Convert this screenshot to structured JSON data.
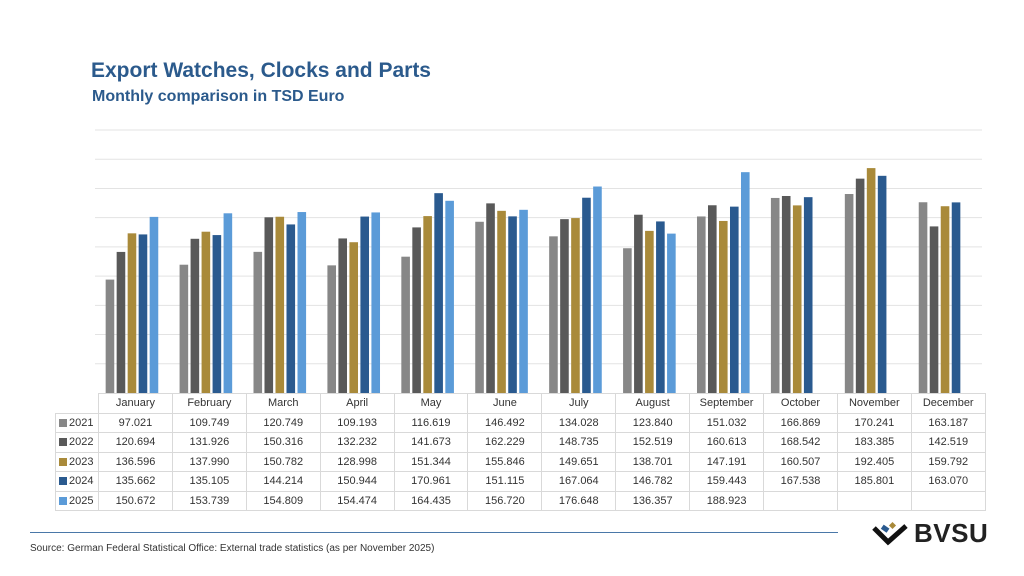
{
  "header": {
    "title": "Export Watches, Clocks and Parts",
    "subtitle": "Monthly comparison in TSD Euro"
  },
  "chart_data": {
    "type": "bar",
    "title": "Export Watches, Clocks and Parts",
    "subtitle": "Monthly comparison in TSD Euro",
    "categories": [
      "January",
      "February",
      "March",
      "April",
      "May",
      "June",
      "July",
      "August",
      "September",
      "October",
      "November",
      "December"
    ],
    "ylim": [
      0,
      225
    ],
    "grid": true,
    "legend": "data-table",
    "series": [
      {
        "name": "2021",
        "color": "#878787",
        "values": [
          97.021,
          109.749,
          120.749,
          109.193,
          116.619,
          146.492,
          134.028,
          123.84,
          151.032,
          166.869,
          170.241,
          163.187
        ],
        "labels": [
          "97.021",
          "109.749",
          "120.749",
          "109.193",
          "116.619",
          "146.492",
          "134.028",
          "123.840",
          "151.032",
          "166.869",
          "170.241",
          "163.187"
        ]
      },
      {
        "name": "2022",
        "color": "#595959",
        "values": [
          120.694,
          131.926,
          150.316,
          132.232,
          141.673,
          162.229,
          148.735,
          152.519,
          160.613,
          168.542,
          183.385,
          142.519
        ],
        "labels": [
          "120.694",
          "131.926",
          "150.316",
          "132.232",
          "141.673",
          "162.229",
          "148.735",
          "152.519",
          "160.613",
          "168.542",
          "183.385",
          "142.519"
        ]
      },
      {
        "name": "2023",
        "color": "#a98a3a",
        "values": [
          136.596,
          137.99,
          150.782,
          128.998,
          151.344,
          155.846,
          149.651,
          138.701,
          147.191,
          160.507,
          192.405,
          159.792
        ],
        "labels": [
          "136.596",
          "137.990",
          "150.782",
          "128.998",
          "151.344",
          "155.846",
          "149.651",
          "138.701",
          "147.191",
          "160.507",
          "192.405",
          "159.792"
        ]
      },
      {
        "name": "2024",
        "color": "#2a5a8f",
        "values": [
          135.662,
          135.105,
          144.214,
          150.944,
          170.961,
          151.115,
          167.064,
          146.782,
          159.443,
          167.538,
          185.801,
          163.07
        ],
        "labels": [
          "135.662",
          "135.105",
          "144.214",
          "150.944",
          "170.961",
          "151.115",
          "167.064",
          "146.782",
          "159.443",
          "167.538",
          "185.801",
          "163.070"
        ]
      },
      {
        "name": "2025",
        "color": "#5b9bd8",
        "values": [
          150.672,
          153.739,
          154.809,
          154.474,
          164.435,
          156.72,
          176.648,
          136.357,
          188.923,
          null,
          null,
          null
        ],
        "labels": [
          "150.672",
          "153.739",
          "154.809",
          "154.474",
          "164.435",
          "156.720",
          "176.648",
          "136.357",
          "188.923",
          "",
          "",
          ""
        ]
      }
    ]
  },
  "footer": {
    "source": "Source: German Federal Statistical Office: External trade statistics (as per November 2025)",
    "logo_text": "BVSU"
  }
}
